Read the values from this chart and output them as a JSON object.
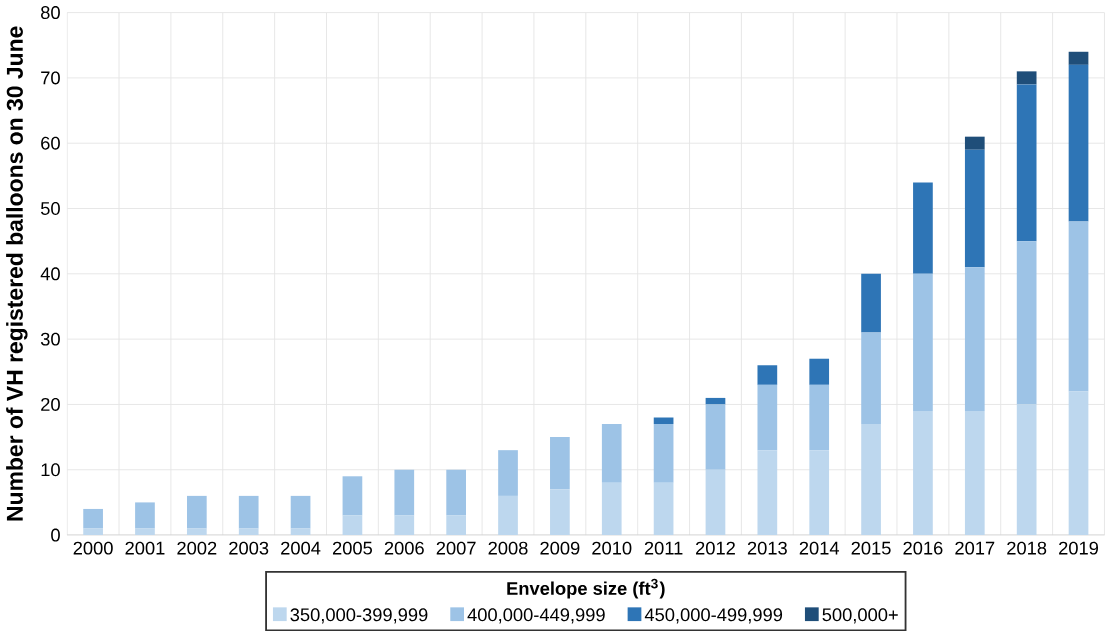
{
  "chart_data": {
    "type": "bar",
    "stacked": true,
    "ylabel": "Number of VH registered balloons on 30 June",
    "legend_title": "Envelope size (ft$^{3}$)",
    "categories": [
      "2000",
      "2001",
      "2002",
      "2003",
      "2004",
      "2005",
      "2006",
      "2007",
      "2008",
      "2009",
      "2010",
      "2011",
      "2012",
      "2013",
      "2014",
      "2015",
      "2016",
      "2017",
      "2018",
      "2019"
    ],
    "series": [
      {
        "name": "350,000-399,999",
        "color": "#bdd7ee",
        "values": [
          1,
          1,
          1,
          1,
          1,
          3,
          3,
          3,
          6,
          7,
          8,
          8,
          10,
          13,
          13,
          17,
          19,
          19,
          20,
          22
        ]
      },
      {
        "name": "400,000-449,999",
        "color": "#9dc3e6",
        "values": [
          3,
          4,
          5,
          5,
          5,
          6,
          7,
          7,
          7,
          8,
          9,
          9,
          10,
          10,
          10,
          14,
          21,
          22,
          25,
          26
        ]
      },
      {
        "name": "450,000-499,999",
        "color": "#2e75b6",
        "values": [
          null,
          null,
          null,
          null,
          null,
          null,
          null,
          null,
          null,
          null,
          null,
          1,
          1,
          3,
          4,
          9,
          14,
          18,
          24,
          24
        ]
      },
      {
        "name": "500,000+",
        "color": "#1f4e79",
        "values": [
          null,
          null,
          null,
          null,
          null,
          null,
          null,
          null,
          null,
          null,
          null,
          null,
          null,
          null,
          null,
          null,
          null,
          2,
          2,
          2
        ]
      }
    ],
    "ylim": [
      0,
      80
    ],
    "yticks": [
      0,
      10,
      20,
      30,
      40,
      50,
      60,
      70,
      80
    ],
    "grid": true,
    "legend": "bottom"
  }
}
